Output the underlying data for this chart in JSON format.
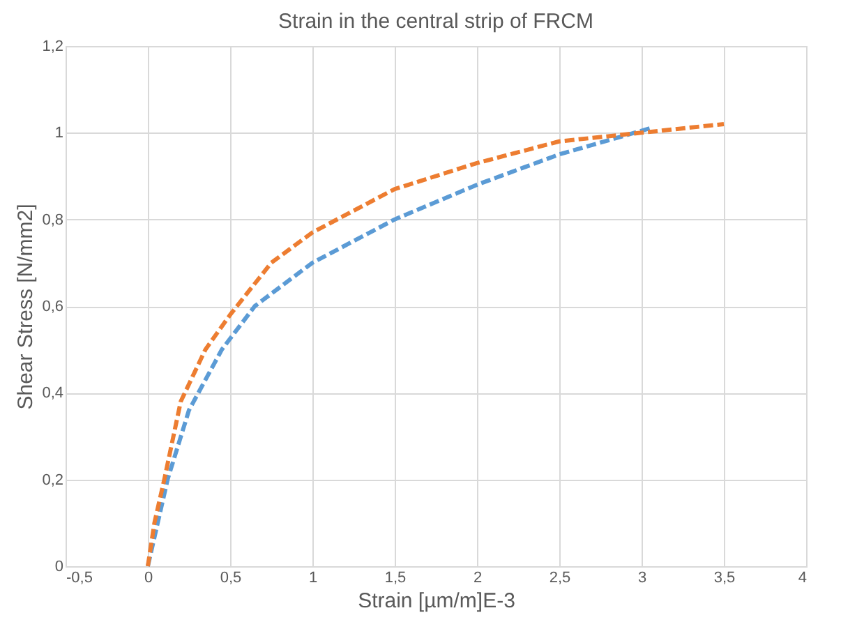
{
  "chart_data": {
    "type": "line",
    "title": "Strain in the central strip of FRCM",
    "xlabel": "Strain [µm/m]E-3",
    "ylabel": "Shear Stress [N/mm2]",
    "series": [
      {
        "color": "#5b9bd5",
        "x": [
          0,
          0.06,
          0.12,
          0.25,
          0.45,
          0.65,
          1,
          1.5,
          2,
          2.5,
          3.05
        ],
        "values": [
          0,
          0.1,
          0.2,
          0.36,
          0.5,
          0.6,
          0.7,
          0.8,
          0.88,
          0.95,
          1.01
        ]
      },
      {
        "color": "#ed7d31",
        "x": [
          0,
          0.04,
          0.1,
          0.2,
          0.35,
          0.5,
          0.75,
          1,
          1.5,
          2,
          2.5,
          3,
          3.5
        ],
        "values": [
          0,
          0.1,
          0.2,
          0.38,
          0.5,
          0.58,
          0.7,
          0.77,
          0.87,
          0.93,
          0.98,
          1.0,
          1.02
        ]
      }
    ],
    "xlim": [
      -0.5,
      4
    ],
    "ylim": [
      0,
      1.2
    ],
    "xticks": [
      {
        "value": -0.5,
        "label": "-0,5"
      },
      0,
      {
        "value": 0.5,
        "label": "0,5"
      },
      1,
      {
        "value": 1.5,
        "label": "1,5"
      },
      2,
      {
        "value": 2.5,
        "label": "2,5"
      },
      3,
      {
        "value": 3.5,
        "label": "3,5"
      },
      4
    ],
    "yticks": [
      0,
      {
        "value": 0.2,
        "label": "0,2"
      },
      {
        "value": 0.4,
        "label": "0,4"
      },
      {
        "value": 0.6,
        "label": "0,6"
      },
      {
        "value": 0.8,
        "label": "0,8"
      },
      1,
      {
        "value": 1.2,
        "label": "1,2"
      }
    ],
    "grid": true,
    "legend": false,
    "line_style": "dashed",
    "marker": "none"
  }
}
